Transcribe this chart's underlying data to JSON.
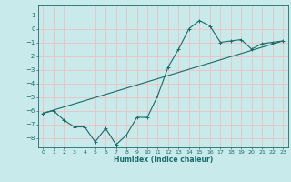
{
  "xlabel": "Humidex (Indice chaleur)",
  "bg_color": "#c8eaea",
  "line_color": "#1a6b6b",
  "grid_color": "#f0c0c0",
  "xlim": [
    -0.5,
    23.5
  ],
  "ylim": [
    -8.7,
    1.7
  ],
  "yticks": [
    1,
    0,
    -1,
    -2,
    -3,
    -4,
    -5,
    -6,
    -7,
    -8
  ],
  "xticks": [
    0,
    1,
    2,
    3,
    4,
    5,
    6,
    7,
    8,
    9,
    10,
    11,
    12,
    13,
    14,
    15,
    16,
    17,
    18,
    19,
    20,
    21,
    22,
    23
  ],
  "line1_x": [
    0,
    1,
    2,
    3,
    4,
    5,
    6,
    7,
    8,
    9,
    10,
    11,
    12,
    13,
    14,
    15,
    16,
    17,
    18,
    19,
    20,
    21,
    22,
    23
  ],
  "line1_y": [
    -6.2,
    -6.0,
    -6.7,
    -7.2,
    -7.2,
    -8.3,
    -7.3,
    -8.5,
    -7.8,
    -6.5,
    -6.5,
    -4.9,
    -2.8,
    -1.5,
    0.0,
    0.6,
    0.2,
    -1.0,
    -0.9,
    -0.8,
    -1.5,
    -1.1,
    -1.0,
    -0.9
  ],
  "line2_x": [
    0,
    23
  ],
  "line2_y": [
    -6.2,
    -0.9
  ],
  "marker": "+"
}
